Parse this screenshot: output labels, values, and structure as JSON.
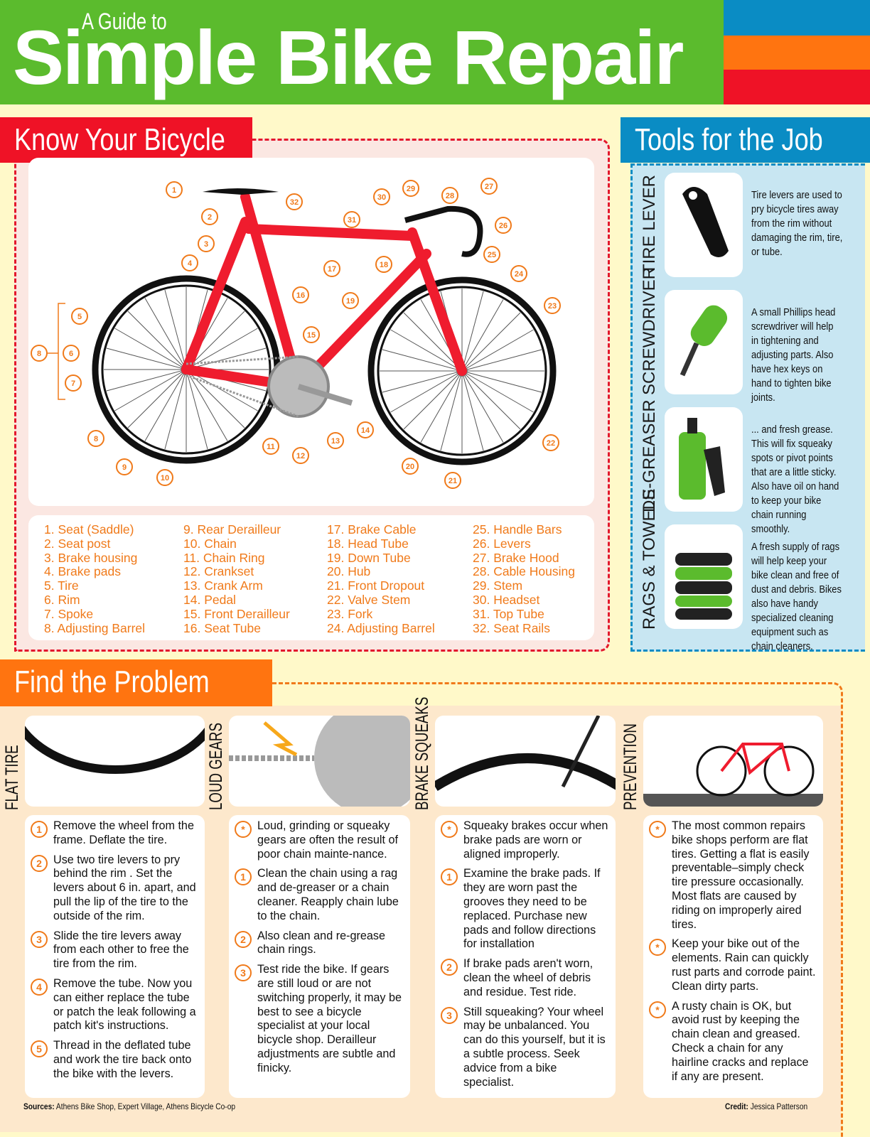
{
  "header": {
    "subtitle": "A Guide to",
    "title": "Simple Bike Repair",
    "colors": {
      "green": "#5bbb2d",
      "blue": "#0a8cc4",
      "orange": "#ff7410",
      "red": "#ef1226"
    }
  },
  "know": {
    "title": "Know Your Bicycle",
    "callouts": [
      "1",
      "2",
      "3",
      "4",
      "5",
      "6",
      "7",
      "8",
      "8",
      "9",
      "10",
      "11",
      "12",
      "13",
      "14",
      "15",
      "16",
      "17",
      "18",
      "19",
      "20",
      "21",
      "22",
      "23",
      "24",
      "25",
      "26",
      "27",
      "28",
      "29",
      "30",
      "31",
      "32"
    ],
    "legend": [
      [
        "1. Seat (Saddle)",
        "2. Seat post",
        "3. Brake housing",
        "4. Brake pads",
        "5. Tire",
        "6. Rim",
        "7. Spoke",
        "8. Adjusting Barrel"
      ],
      [
        "9. Rear Derailleur",
        "10. Chain",
        "11. Chain Ring",
        "12. Crankset",
        "13. Crank Arm",
        "14. Pedal",
        "15. Front Derailleur",
        "16. Seat Tube"
      ],
      [
        "17. Brake Cable",
        "18. Head Tube",
        "19. Down Tube",
        "20. Hub",
        "21. Front Dropout",
        "22. Valve Stem",
        "23. Fork",
        "24. Adjusting Barrel"
      ],
      [
        "25. Handle Bars",
        "26. Levers",
        "27. Brake Hood",
        "28. Cable Housing",
        "29. Stem",
        "30. Headset",
        "31. Top Tube",
        "32. Seat Rails"
      ]
    ]
  },
  "tools": {
    "title": "Tools for the Job",
    "items": [
      {
        "name": "TIRE LEVER",
        "icon": "tire-lever-icon",
        "text": "Tire levers are used to pry bicycle tires away from the rim without damaging the rim, tire, or tube."
      },
      {
        "name": "SCREWDRIVER",
        "icon": "screwdriver-icon",
        "text": "A small Phillips head screwdriver will help in tightening and adjusting parts. Also have hex keys on hand to tighten bike joints."
      },
      {
        "name": "DE-GREASER",
        "icon": "degreaser-icon",
        "text": "... and fresh grease. This will fix squeaky spots or pivot points that are a little sticky. Also have oil on hand to keep your bike chain running smoothly."
      },
      {
        "name": "RAGS & TOWELS",
        "icon": "rags-icon",
        "text": "A fresh supply of rags will help keep your bike clean and free of dust and debris. Bikes also have handy specialized cleaning equipment such as chain cleaners."
      }
    ]
  },
  "problems": {
    "title": "Find the Problem",
    "columns": [
      {
        "name": "FLAT TIRE",
        "steps": [
          [
            "1",
            "Remove the wheel from the frame. Deflate the tire."
          ],
          [
            "2",
            "Use two tire levers to pry behind the rim . Set the levers about 6 in. apart, and pull the lip of the tire to the outside of the rim."
          ],
          [
            "3",
            "Slide the tire levers away from each other to free the tire from the rim."
          ],
          [
            "4",
            "Remove the tube. Now you can either replace the tube or patch the leak following a patch kit's instructions."
          ],
          [
            "5",
            "Thread in the deflated tube and work the tire back onto the bike with the levers."
          ]
        ]
      },
      {
        "name": "LOUD GEARS",
        "steps": [
          [
            "*",
            "Loud, grinding or squeaky gears are often the result of poor chain mainte-nance."
          ],
          [
            "1",
            "Clean the chain using a rag and de-greaser or a chain cleaner. Reapply chain lube to the chain."
          ],
          [
            "2",
            "Also clean and re-grease chain rings."
          ],
          [
            "3",
            "Test ride the bike. If gears are still loud or are not switching properly, it may be best to see a bicycle specialist at your local bicycle shop. Derailleur adjustments are subtle and finicky."
          ]
        ]
      },
      {
        "name": "BRAKE SQUEAKS",
        "steps": [
          [
            "*",
            "Squeaky brakes occur when brake pads are worn or aligned improperly."
          ],
          [
            "1",
            "Examine the brake pads. If they are worn past the grooves they need to be replaced. Purchase new pads and follow directions for installation"
          ],
          [
            "2",
            "If brake pads aren't worn, clean the wheel of debris and residue. Test ride."
          ],
          [
            "3",
            "Still squeaking? Your wheel may be unbalanced. You can do this yourself, but it is a subtle process. Seek advice from a bike specialist."
          ]
        ]
      },
      {
        "name": "PREVENTION",
        "steps": [
          [
            "*",
            "The most common repairs bike shops perform are flat tires. Getting a flat is easily preventable–simply check tire pressure occasionally. Most flats are caused by riding on improperly aired tires."
          ],
          [
            "*",
            "Keep your bike out of the elements. Rain can quickly rust parts and corrode paint. Clean dirty parts."
          ],
          [
            "*",
            "A rusty chain is OK, but avoid rust by keeping the chain clean and greased. Check a chain for any hairline cracks and replace if any are present."
          ]
        ]
      }
    ]
  },
  "footer": {
    "sources_label": "Sources:",
    "sources": "Athens Bike Shop, Expert Village, Athens Bicycle Co-op",
    "credit_label": "Credit:",
    "credit": "Jessica Patterson"
  }
}
